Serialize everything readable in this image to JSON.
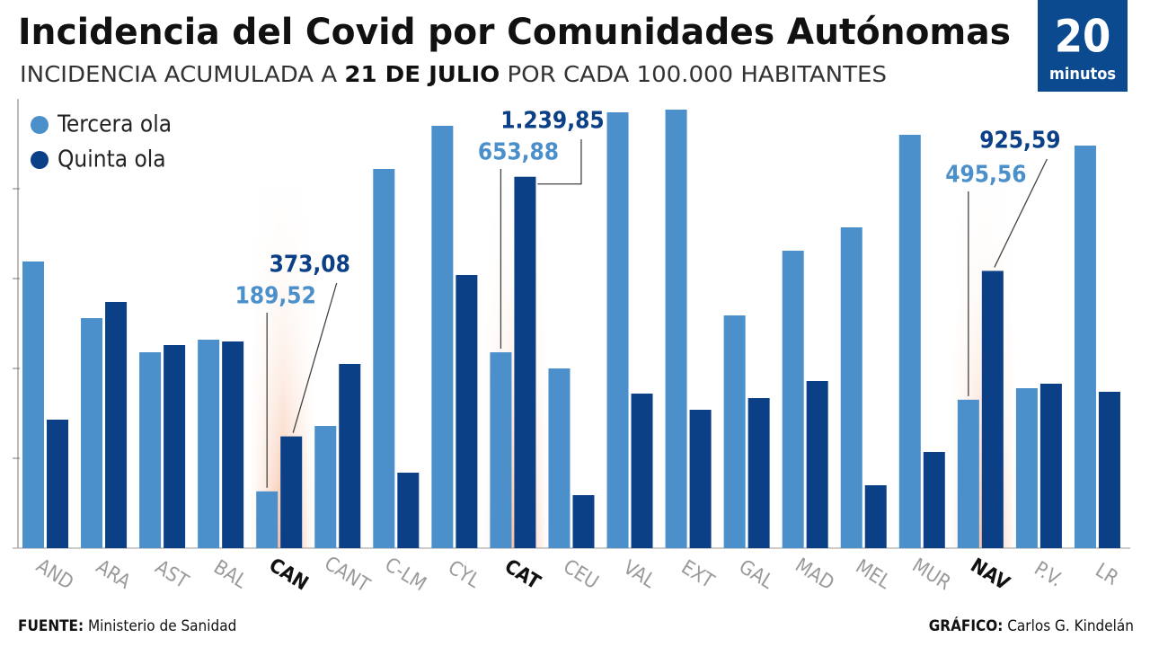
{
  "chart_data": {
    "type": "bar",
    "title": "Incidencia del Covid por Comunidades Autónomas",
    "subtitle": [
      "INCIDENCIA ACUMULADA A ",
      "21 DE JULIO",
      " POR CADA 100.000 HABITANTES"
    ],
    "logo": [
      "20",
      "minutos"
    ],
    "source": [
      "FUENTE:",
      " Ministerio de Sanidad"
    ],
    "credit": [
      "GRÁFICO:",
      " Carlos G. Kindelán"
    ],
    "categories": [
      "AND",
      "ARA",
      "AST",
      "BAL",
      "CAN",
      "CANT",
      "C-LM",
      "CYL",
      "CAT",
      "CEU",
      "VAL",
      "EXT",
      "GAL",
      "MAD",
      "MEL",
      "MUR",
      "NAV",
      "P.V.",
      "LR"
    ],
    "series": [
      {
        "name": "Tercera ola",
        "color": "#4b8fcb",
        "values": [
          957,
          768,
          654,
          696,
          189.52,
          408,
          1266,
          1410,
          653.88,
          600,
          1455,
          1464,
          777,
          993,
          1071,
          1380,
          495.56,
          534,
          1344
        ],
        "value_labels": [
          null,
          null,
          null,
          null,
          "189,52",
          null,
          null,
          null,
          "653,88",
          null,
          null,
          null,
          null,
          null,
          null,
          null,
          "495,56",
          null,
          null
        ]
      },
      {
        "name": "Quinta ola",
        "color": "#0b3f86",
        "values": [
          429,
          822,
          678,
          690,
          373.08,
          615,
          252,
          912,
          1239.85,
          177,
          516,
          462,
          501,
          558,
          210,
          321,
          925.59,
          549,
          522
        ],
        "value_labels": [
          null,
          null,
          null,
          null,
          "373,08",
          null,
          null,
          null,
          "1.239,85",
          null,
          null,
          null,
          null,
          null,
          null,
          null,
          "925,59",
          null,
          null
        ]
      }
    ],
    "ylim": [
      0,
      1500
    ],
    "yticks": [
      0,
      300,
      600,
      900,
      1200
    ]
  }
}
